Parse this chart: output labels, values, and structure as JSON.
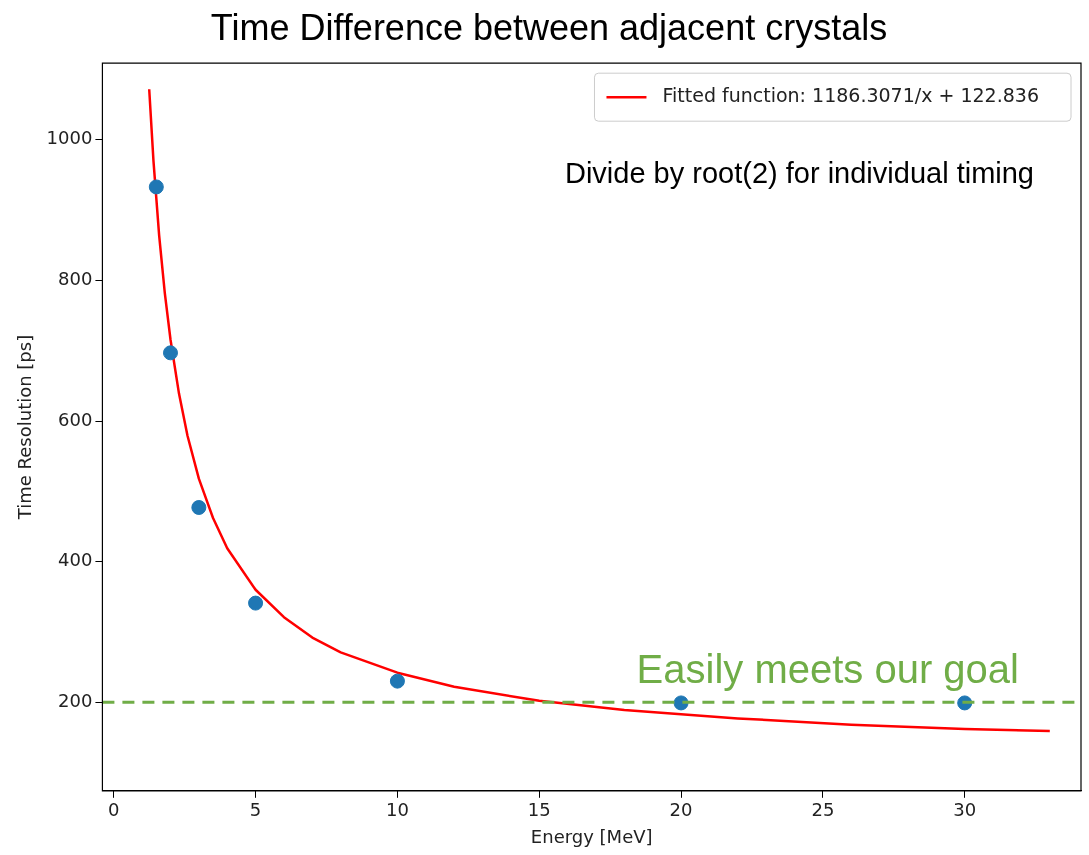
{
  "chart_data": {
    "type": "scatter",
    "title": "Time Difference between adjacent crystals",
    "xlabel": "Energy [MeV]",
    "ylabel": "Time Resolution [ps]",
    "x": [
      1.5,
      2,
      3,
      5,
      10,
      20,
      30
    ],
    "series": [
      {
        "type": "scatter",
        "color": "#1f77b4",
        "marker": "circle",
        "values": [
          933,
          697,
          477,
          341,
          230,
          199,
          199
        ]
      },
      {
        "type": "line",
        "name": "Fitted function: 1186.3071/x + 122.836",
        "color": "#ff0000",
        "marker": "none",
        "x": [
          1.25,
          1.4,
          1.6,
          1.8,
          2,
          2.3,
          2.6,
          3,
          3.5,
          4,
          5,
          6,
          7,
          8,
          10,
          12,
          15,
          18,
          22,
          26,
          30,
          33
        ],
        "values": [
          1072,
          970,
          864,
          782,
          716,
          639,
          579,
          518,
          462,
          419,
          360,
          321,
          292,
          271,
          242,
          222,
          202,
          189,
          177,
          168,
          162,
          159
        ]
      }
    ],
    "xlim": [
      -0.4,
      34.1
    ],
    "ylim": [
      74,
      1109
    ],
    "xticks": [
      0,
      5,
      10,
      15,
      20,
      25,
      30
    ],
    "yticks": [
      200,
      400,
      600,
      800,
      1000
    ],
    "grid": false,
    "legend": "top right",
    "ref_lines": [
      {
        "axis": "y",
        "value": 200,
        "label": "Easily meets our goal",
        "color": "#70ad47",
        "line_style": "dashed"
      }
    ],
    "annotations": [
      "Divide by root(2) for individual timing"
    ]
  }
}
